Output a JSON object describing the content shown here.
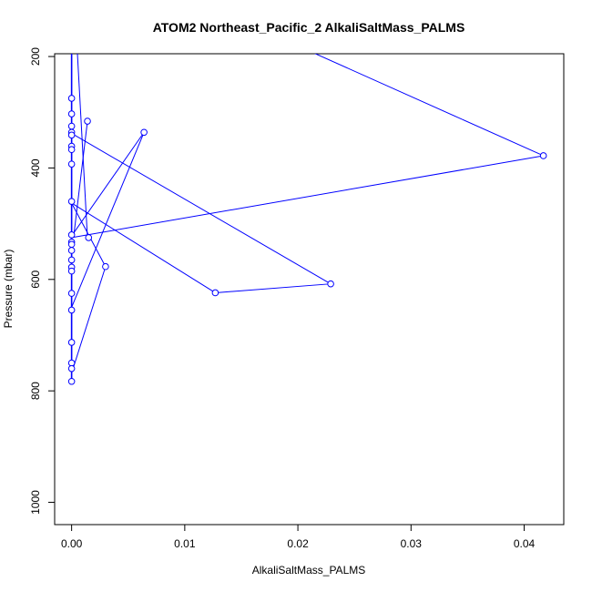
{
  "chart_data": {
    "type": "line",
    "title": "ATOM2 Northeast_Pacific_2 AlkaliSaltMass_PALMS",
    "xlabel": "AlkaliSaltMass_PALMS",
    "ylabel": "Pressure (mbar)",
    "xlim": [
      -0.0015,
      0.0435
    ],
    "ylim": [
      1040,
      195
    ],
    "y_inverted": true,
    "x_ticks": [
      0.0,
      0.01,
      0.02,
      0.03,
      0.04
    ],
    "x_tick_labels": [
      "0.00",
      "0.01",
      "0.02",
      "0.03",
      "0.04"
    ],
    "y_ticks": [
      200,
      400,
      600,
      800,
      1000
    ],
    "y_tick_labels": [
      "200",
      "400",
      "600",
      "800",
      "1000"
    ],
    "grid": false,
    "color": "#0000ff",
    "series": [
      {
        "points": [
          [
            0.0,
            195
          ],
          [
            0.0,
            275
          ],
          [
            0.0,
            303
          ],
          [
            0.0,
            325
          ],
          [
            0.0,
            336
          ],
          [
            0.0,
            341
          ],
          [
            0.0,
            361
          ],
          [
            0.0,
            367
          ],
          [
            0.0,
            393
          ],
          [
            0.0,
            460
          ],
          [
            0.0,
            520
          ],
          [
            0.0,
            533
          ],
          [
            0.0,
            537
          ],
          [
            0.0,
            548
          ],
          [
            0.0,
            565
          ],
          [
            0.0,
            578
          ],
          [
            0.0,
            585
          ],
          [
            0.0,
            625
          ],
          [
            0.0,
            655
          ],
          [
            0.0,
            713
          ],
          [
            0.0,
            750
          ],
          [
            0.0,
            760
          ],
          [
            0.0,
            783
          ],
          [
            0.0005,
            190
          ],
          [
            0.0014,
            525
          ],
          [
            0.0,
            525
          ],
          [
            0.0417,
            378
          ],
          [
            0.021,
            190
          ]
        ],
        "segments": [
          [
            [
              0.0005,
              190
            ],
            [
              0.0014,
              525
            ]
          ],
          [
            [
              0.0014,
              316
            ],
            [
              0.0002,
              520
            ]
          ],
          [
            [
              0.0,
              525
            ],
            [
              0.0417,
              378
            ]
          ],
          [
            [
              0.0417,
              378
            ],
            [
              0.021,
              190
            ]
          ],
          [
            [
              0.0,
              338
            ],
            [
              0.0229,
              608
            ]
          ],
          [
            [
              0.0229,
              608
            ],
            [
              0.0127,
              624
            ]
          ],
          [
            [
              0.0127,
              624
            ],
            [
              0.0,
              463
            ]
          ],
          [
            [
              0.0,
              463
            ],
            [
              0.003,
              577
            ]
          ],
          [
            [
              0.003,
              577
            ],
            [
              0.0,
              768
            ]
          ],
          [
            [
              0.0,
              650
            ],
            [
              0.0064,
              336
            ]
          ],
          [
            [
              0.0064,
              336
            ],
            [
              0.0,
              522
            ]
          ],
          [
            [
              0.0,
              195
            ],
            [
              0.0,
              783
            ]
          ]
        ]
      }
    ],
    "markers": [
      [
        0.0,
        275
      ],
      [
        0.0,
        303
      ],
      [
        0.0,
        325
      ],
      [
        0.0,
        336
      ],
      [
        0.0,
        341
      ],
      [
        0.0,
        361
      ],
      [
        0.0,
        367
      ],
      [
        0.0,
        393
      ],
      [
        0.0,
        460
      ],
      [
        0.0,
        520
      ],
      [
        0.0,
        533
      ],
      [
        0.0,
        537
      ],
      [
        0.0,
        548
      ],
      [
        0.0,
        565
      ],
      [
        0.0,
        578
      ],
      [
        0.0,
        585
      ],
      [
        0.0,
        625
      ],
      [
        0.0,
        655
      ],
      [
        0.0,
        713
      ],
      [
        0.0,
        750
      ],
      [
        0.0,
        760
      ],
      [
        0.0,
        783
      ],
      [
        0.0014,
        316
      ],
      [
        0.0015,
        525
      ],
      [
        0.0064,
        336
      ],
      [
        0.003,
        577
      ],
      [
        0.0417,
        378
      ],
      [
        0.0229,
        608
      ],
      [
        0.0127,
        624
      ]
    ]
  }
}
